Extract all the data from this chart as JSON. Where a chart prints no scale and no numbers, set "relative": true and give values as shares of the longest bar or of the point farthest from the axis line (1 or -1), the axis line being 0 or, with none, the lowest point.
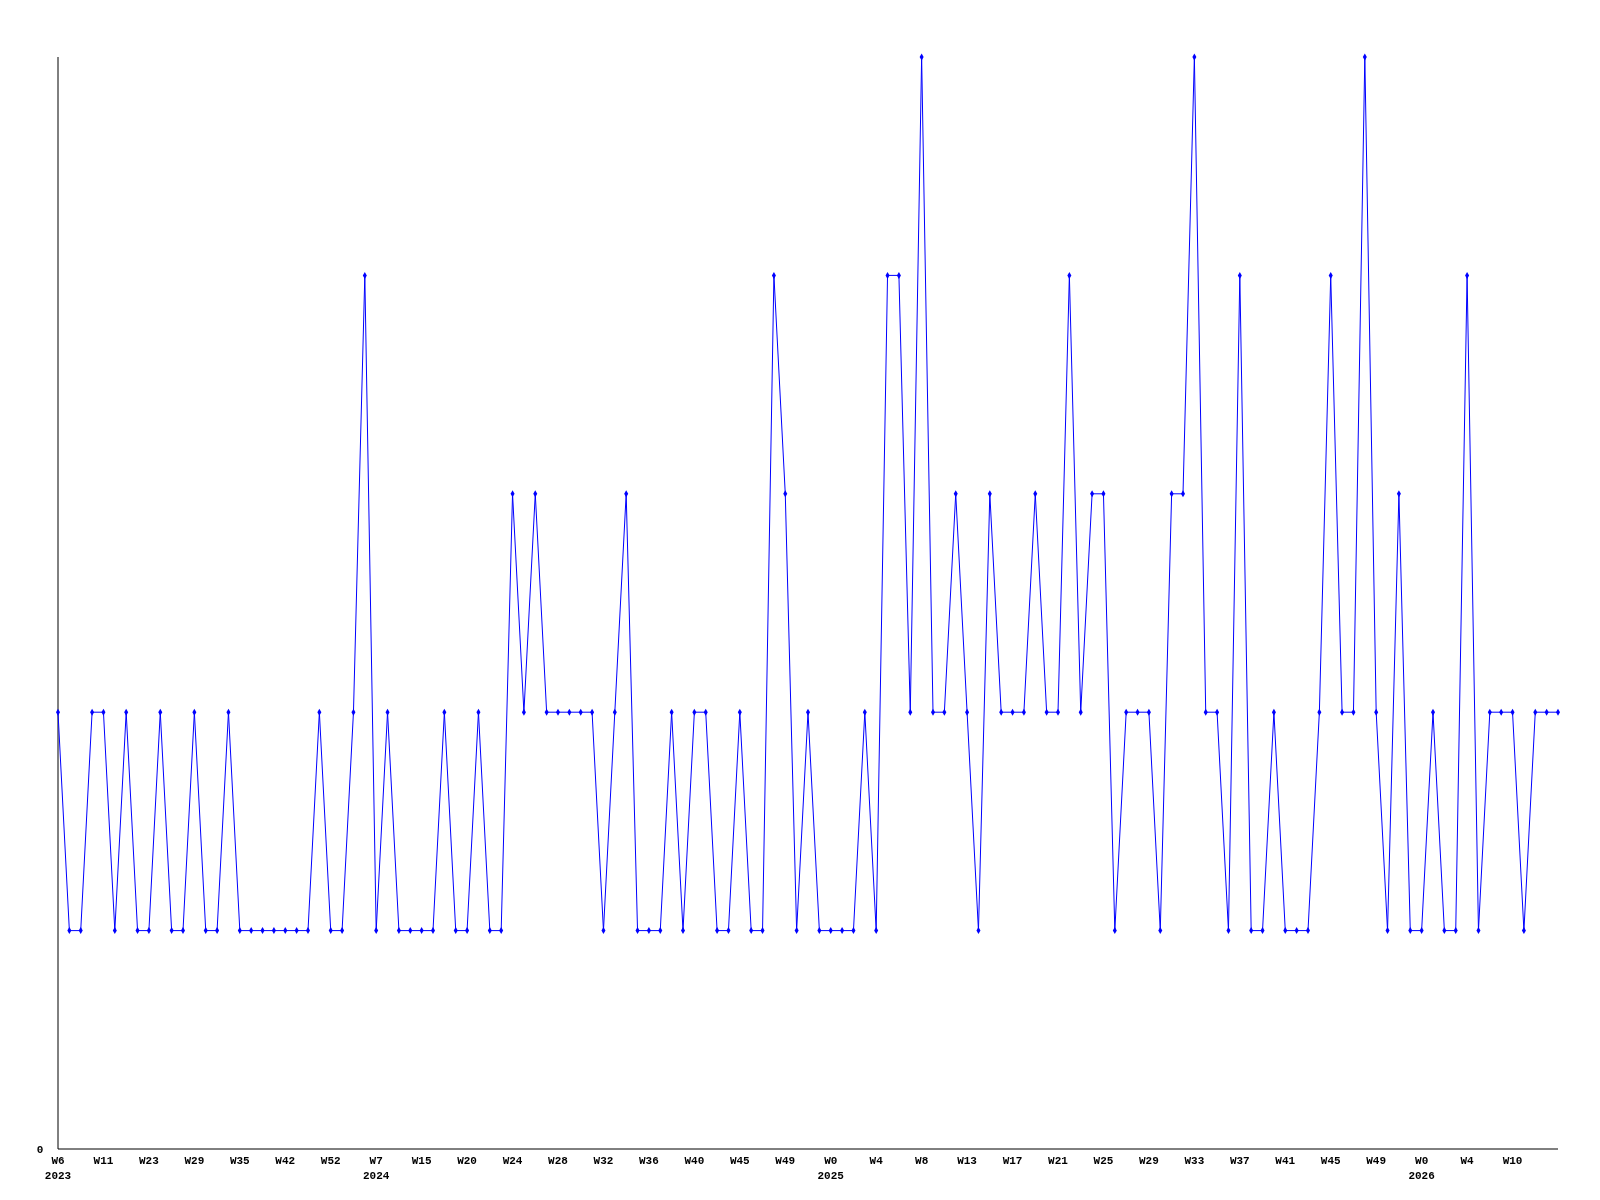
{
  "chart_data": {
    "type": "line",
    "relative": true,
    "marker": "diamond",
    "annotations": [
      "0"
    ],
    "categories": [
      "W6\n2023",
      null,
      null,
      null,
      "W11",
      null,
      null,
      null,
      "W23",
      null,
      null,
      null,
      "W29",
      null,
      null,
      null,
      "W35",
      null,
      null,
      null,
      "W42",
      null,
      null,
      null,
      "W52",
      null,
      null,
      null,
      "W7\n2024",
      null,
      null,
      null,
      "W15",
      null,
      null,
      null,
      "W20",
      null,
      null,
      null,
      "W24",
      null,
      null,
      null,
      "W28",
      null,
      null,
      null,
      "W32",
      null,
      null,
      null,
      "W36",
      null,
      null,
      null,
      "W40",
      null,
      null,
      null,
      "W45",
      null,
      null,
      null,
      "W49",
      null,
      null,
      null,
      "W0\n2025",
      null,
      null,
      null,
      "W4",
      null,
      null,
      null,
      "W8",
      null,
      null,
      null,
      "W13",
      null,
      null,
      null,
      "W17",
      null,
      null,
      null,
      "W21",
      null,
      null,
      null,
      "W25",
      null,
      null,
      null,
      "W29",
      null,
      null,
      null,
      "W33",
      null,
      null,
      null,
      "W37",
      null,
      null,
      null,
      "W41",
      null,
      null,
      null,
      "W45",
      null,
      null,
      null,
      "W49",
      null,
      null,
      null,
      "W0\n2026",
      null,
      null,
      null,
      "W4",
      null,
      null,
      null,
      "W10",
      null,
      null,
      null,
      null
    ],
    "series": [
      {
        "color": "#0000ff",
        "values": [
          0.4,
          0.2,
          0.2,
          0.4,
          0.4,
          0.2,
          0.4,
          0.2,
          0.2,
          0.4,
          0.2,
          0.2,
          0.4,
          0.2,
          0.2,
          0.4,
          0.2,
          0.2,
          0.2,
          0.2,
          0.2,
          0.2,
          0.2,
          0.4,
          0.2,
          0.2,
          0.4,
          0.8,
          0.2,
          0.4,
          0.2,
          0.2,
          0.2,
          0.2,
          0.4,
          0.2,
          0.2,
          0.4,
          0.2,
          0.2,
          0.6,
          0.4,
          0.6,
          0.4,
          0.4,
          0.4,
          0.4,
          0.4,
          0.2,
          0.4,
          0.6,
          0.2,
          0.2,
          0.2,
          0.4,
          0.2,
          0.4,
          0.4,
          0.2,
          0.2,
          0.4,
          0.2,
          0.2,
          0.8,
          0.6,
          0.2,
          0.4,
          0.2,
          0.2,
          0.2,
          0.2,
          0.4,
          0.2,
          0.8,
          0.8,
          0.4,
          1,
          0.4,
          0.4,
          0.6,
          0.4,
          0.2,
          0.6,
          0.4,
          0.4,
          0.4,
          0.6,
          0.4,
          0.4,
          0.8,
          0.4,
          0.6,
          0.6,
          0.2,
          0.4,
          0.4,
          0.4,
          0.2,
          0.6,
          0.6,
          1,
          0.4,
          0.4,
          0.2,
          0.8,
          0.2,
          0.2,
          0.4,
          0.2,
          0.2,
          0.2,
          0.4,
          0.8,
          0.4,
          0.4,
          1,
          0.4,
          0.2,
          0.6,
          0.2,
          0.2,
          0.4,
          0.2,
          0.2,
          0.8,
          0.2,
          0.4,
          0.4,
          0.4,
          0.2,
          0.4,
          0.4,
          0.4
        ]
      }
    ]
  }
}
